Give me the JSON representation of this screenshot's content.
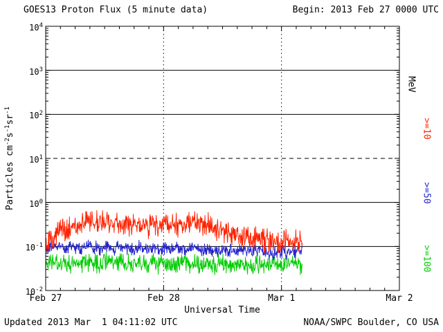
{
  "header": {
    "title": "GOES13 Proton Flux (5 minute data)",
    "begin": "Begin: 2013 Feb 27 0000 UTC"
  },
  "footer": {
    "updated": "Updated 2013 Mar  1 04:11:02 UTC",
    "credit": "NOAA/SWPC Boulder, CO USA"
  },
  "chart_data": {
    "type": "line",
    "title": "GOES13 Proton Flux (5 minute data)",
    "xlabel": "Universal Time",
    "ylabel_parts": [
      {
        "t": "Particles cm"
      },
      {
        "sup": "-2"
      },
      {
        "t": "s"
      },
      {
        "sup": "-1"
      },
      {
        "t": "sr"
      },
      {
        "sup": "-1"
      }
    ],
    "ylim_log": [
      -2,
      4
    ],
    "y_exponents": [
      4,
      3,
      2,
      1,
      0,
      -1,
      -2
    ],
    "x_total_hours": 72,
    "x_day_labels": [
      {
        "label": "Feb 27",
        "hour": 0
      },
      {
        "label": "Feb 28",
        "hour": 24
      },
      {
        "label": "Mar 1",
        "hour": 48
      },
      {
        "label": "Mar 2",
        "hour": 72
      }
    ],
    "solid_hlines": [
      3,
      2,
      0,
      -1
    ],
    "dashed_hlines": [
      1
    ],
    "dotted_vlines_hours": [
      24,
      48
    ],
    "data_end_hour": 52.25,
    "step_minutes": 5,
    "legend_position": "right",
    "grid": true,
    "series": [
      {
        "name": ">=10 MeV",
        "color": "#ff2200",
        "noise_decades": 0.16,
        "hourly_flux": [
          0.12,
          0.15,
          0.18,
          0.22,
          0.25,
          0.28,
          0.3,
          0.33,
          0.35,
          0.38,
          0.36,
          0.34,
          0.38,
          0.35,
          0.32,
          0.33,
          0.31,
          0.29,
          0.31,
          0.33,
          0.31,
          0.29,
          0.31,
          0.33,
          0.34,
          0.33,
          0.35,
          0.32,
          0.34,
          0.36,
          0.33,
          0.3,
          0.28,
          0.3,
          0.27,
          0.24,
          0.21,
          0.19,
          0.18,
          0.17,
          0.16,
          0.15,
          0.15,
          0.14,
          0.14,
          0.13,
          0.13,
          0.12,
          0.13,
          0.13,
          0.12,
          0.13,
          0.13
        ]
      },
      {
        "name": ">=50 MeV",
        "color": "#2222cc",
        "noise_decades": 0.09,
        "hourly_flux": [
          0.09,
          0.09,
          0.1,
          0.1,
          0.09,
          0.1,
          0.1,
          0.09,
          0.1,
          0.1,
          0.1,
          0.09,
          0.1,
          0.09,
          0.09,
          0.1,
          0.09,
          0.09,
          0.09,
          0.1,
          0.09,
          0.09,
          0.09,
          0.09,
          0.09,
          0.09,
          0.09,
          0.09,
          0.09,
          0.09,
          0.09,
          0.09,
          0.08,
          0.09,
          0.08,
          0.08,
          0.08,
          0.08,
          0.08,
          0.08,
          0.08,
          0.08,
          0.08,
          0.07,
          0.08,
          0.07,
          0.07,
          0.07,
          0.08,
          0.07,
          0.07,
          0.08,
          0.08
        ]
      },
      {
        "name": ">=100 MeV",
        "color": "#00cc00",
        "noise_decades": 0.13,
        "hourly_flux": [
          0.04,
          0.041,
          0.04,
          0.042,
          0.04,
          0.041,
          0.042,
          0.04,
          0.041,
          0.042,
          0.041,
          0.04,
          0.042,
          0.041,
          0.04,
          0.041,
          0.04,
          0.041,
          0.042,
          0.041,
          0.04,
          0.041,
          0.04,
          0.041,
          0.042,
          0.041,
          0.04,
          0.041,
          0.042,
          0.041,
          0.04,
          0.041,
          0.04,
          0.041,
          0.04,
          0.04,
          0.041,
          0.04,
          0.04,
          0.041,
          0.04,
          0.04,
          0.039,
          0.04,
          0.039,
          0.04,
          0.039,
          0.04,
          0.04,
          0.039,
          0.04,
          0.04,
          0.04
        ]
      }
    ],
    "right_axis_labels": [
      {
        "text": "MeV",
        "color": "#000000"
      },
      {
        "text": ">=10",
        "color": "#ff2200"
      },
      {
        "text": ">=50",
        "color": "#2222cc"
      },
      {
        "text": ">=100",
        "color": "#00cc00"
      }
    ]
  }
}
